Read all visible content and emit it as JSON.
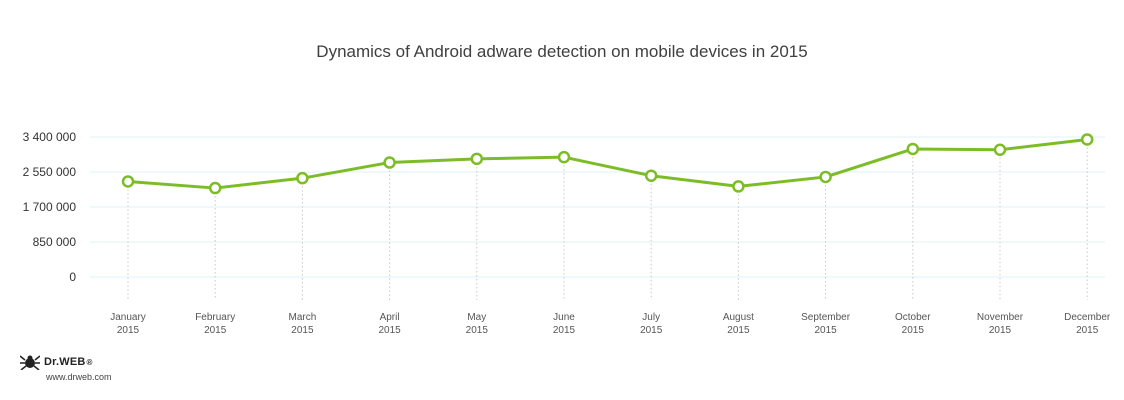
{
  "chart_data": {
    "type": "line",
    "title": "Dynamics of Android adware detection on mobile devices in 2015",
    "xlabel": "",
    "ylabel": "",
    "categories": [
      [
        "January",
        "2015"
      ],
      [
        "February",
        "2015"
      ],
      [
        "March",
        "2015"
      ],
      [
        "April",
        "2015"
      ],
      [
        "May",
        "2015"
      ],
      [
        "June",
        "2015"
      ],
      [
        "July",
        "2015"
      ],
      [
        "August",
        "2015"
      ],
      [
        "September",
        "2015"
      ],
      [
        "October",
        "2015"
      ],
      [
        "November",
        "2015"
      ],
      [
        "December",
        "2015"
      ]
    ],
    "series": [
      {
        "values": [
          2320000,
          2160000,
          2400000,
          2780000,
          2870000,
          2910000,
          2460000,
          2200000,
          2430000,
          3110000,
          3090000,
          3340000
        ]
      }
    ],
    "yticks": [
      0,
      850000,
      1700000,
      2550000,
      3400000
    ],
    "ytick_labels": [
      "0",
      "850 000",
      "1 700 000",
      "2 550 000",
      "3 400 000"
    ],
    "ylim": [
      0,
      3400000
    ],
    "grid": true,
    "line_color": "#7cbd27",
    "grid_color": "#dff0f6",
    "marker_fill": "#ffffff"
  },
  "branding": {
    "name": "Dr.WEB",
    "registered": "®",
    "url": "www.drweb.com"
  }
}
